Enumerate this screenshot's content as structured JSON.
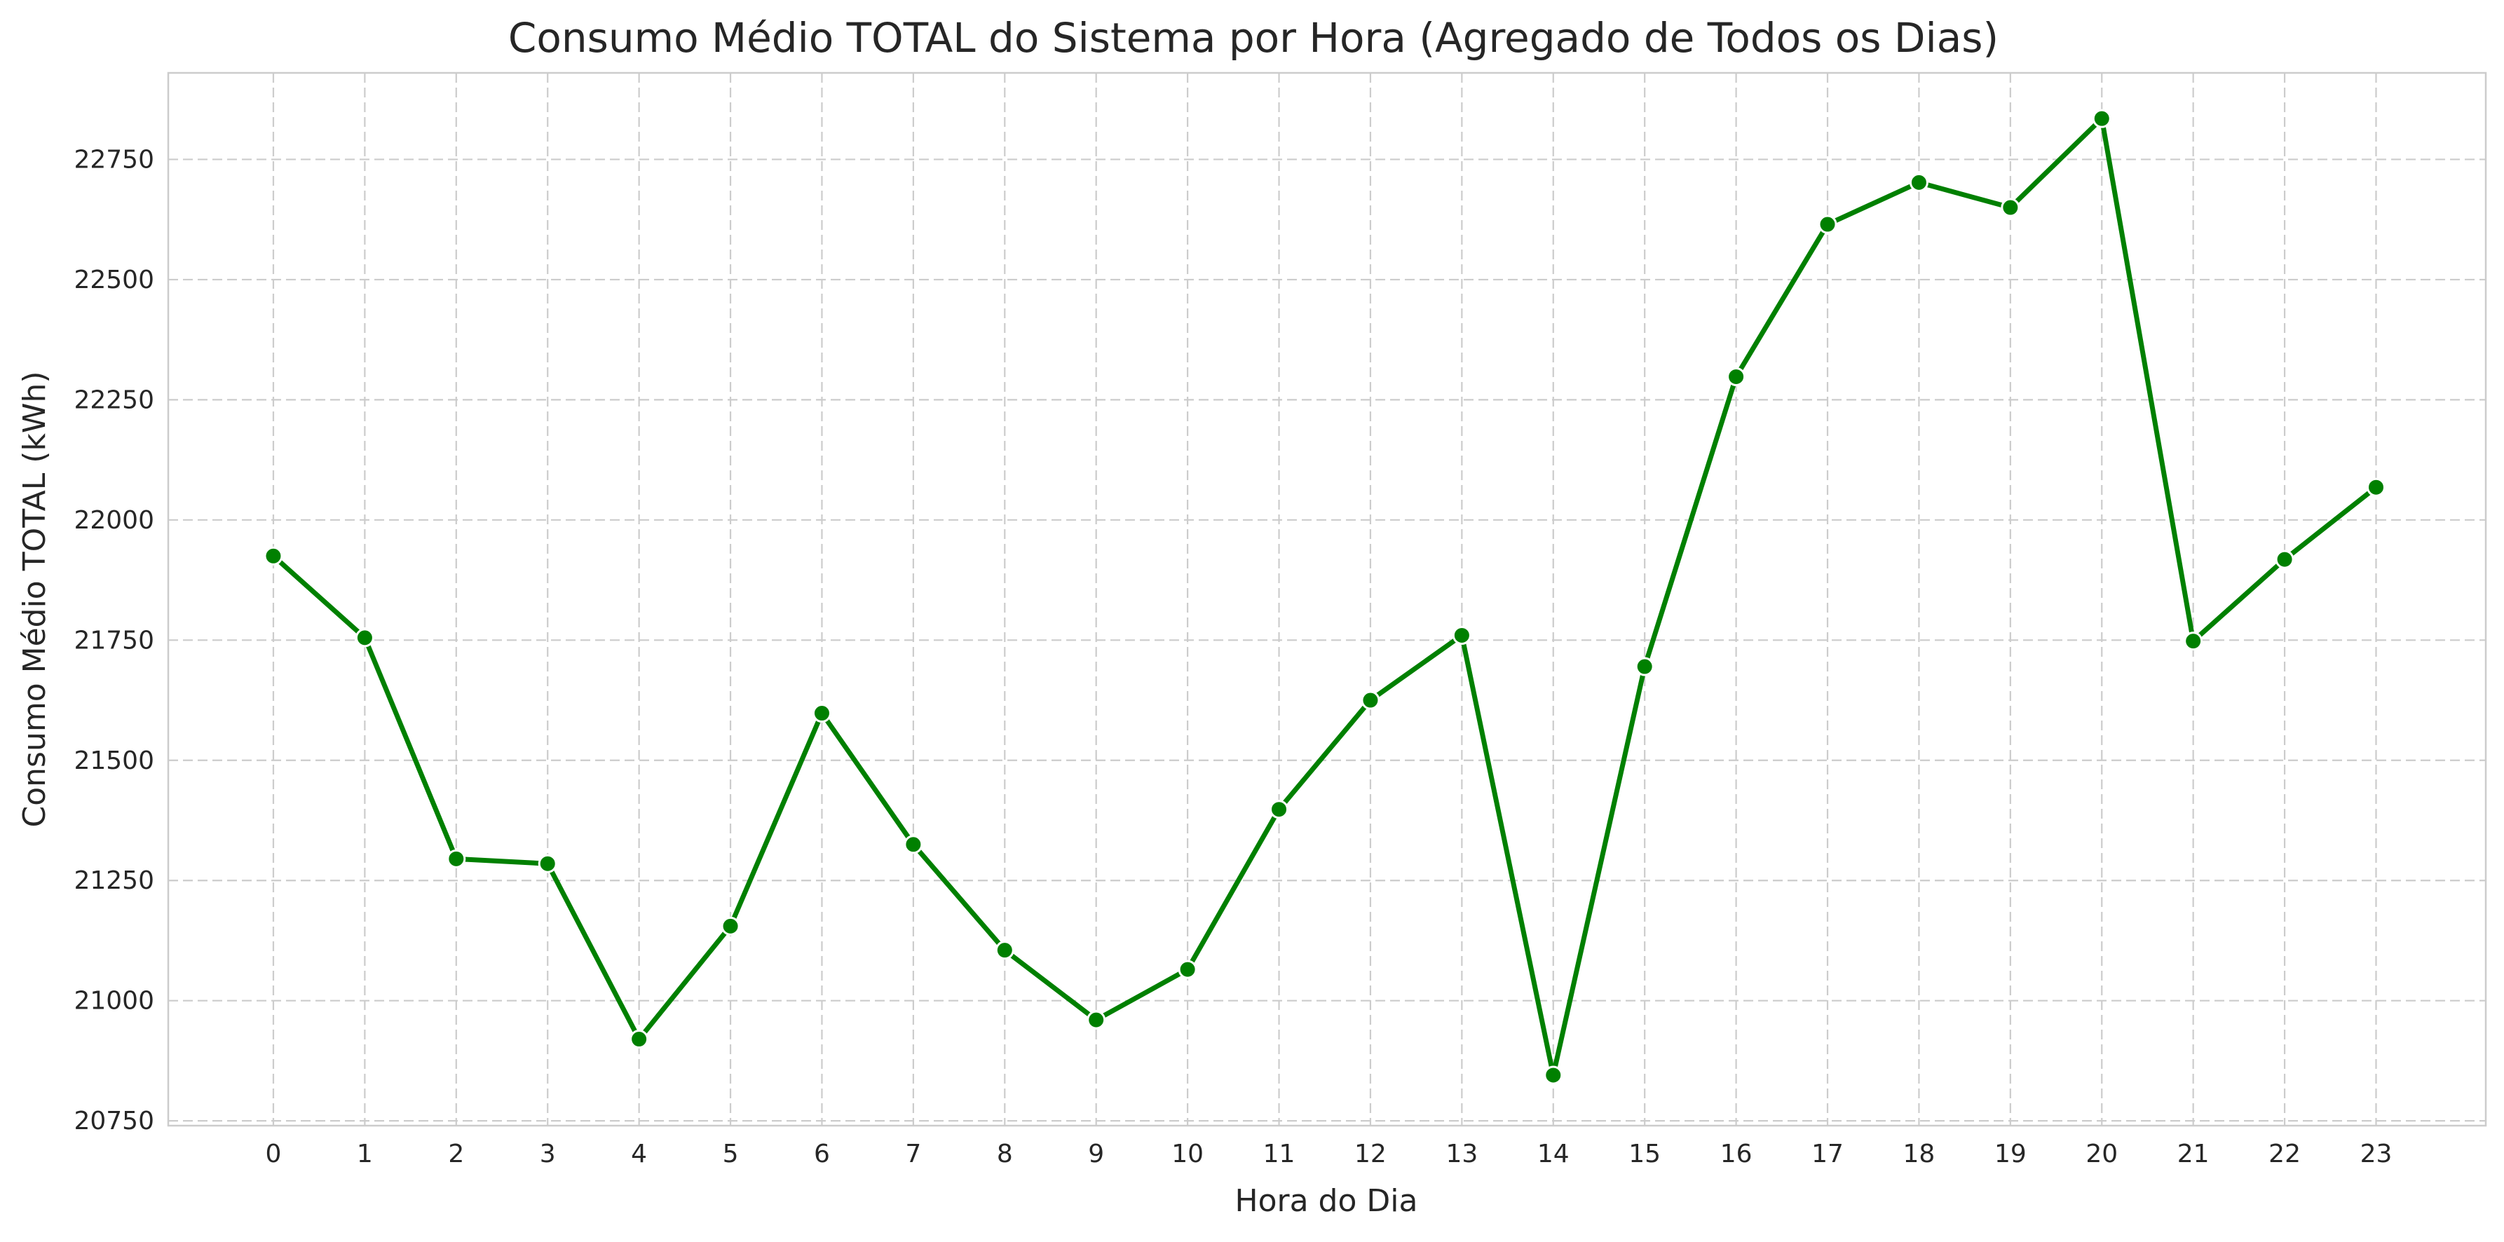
{
  "chart_data": {
    "type": "line",
    "title": "Consumo Médio TOTAL do Sistema por Hora (Agregado de Todos os Dias)",
    "xlabel": "Hora do Dia",
    "ylabel": "Consumo Médio TOTAL (kWh)",
    "x": [
      0,
      1,
      2,
      3,
      4,
      5,
      6,
      7,
      8,
      9,
      10,
      11,
      12,
      13,
      14,
      15,
      16,
      17,
      18,
      19,
      20,
      21,
      22,
      23
    ],
    "x_tick_labels": [
      "0",
      "1",
      "2",
      "3",
      "4",
      "5",
      "6",
      "7",
      "8",
      "9",
      "10",
      "11",
      "12",
      "13",
      "14",
      "15",
      "16",
      "17",
      "18",
      "19",
      "20",
      "21",
      "22",
      "23"
    ],
    "xlim": [
      -1.15,
      24.2
    ],
    "y_ticks": [
      20750,
      21000,
      21250,
      21500,
      21750,
      22000,
      22250,
      22500,
      22750
    ],
    "y_tick_labels": [
      "20750",
      "21000",
      "21250",
      "21500",
      "21750",
      "22000",
      "22250",
      "22500",
      "22750"
    ],
    "ylim": [
      20740,
      22930
    ],
    "grid": true,
    "legend": "none",
    "series": [
      {
        "color": "#008000",
        "marker": "circle",
        "values": [
          21925,
          21755,
          21295,
          21285,
          20920,
          21155,
          21598,
          21325,
          21105,
          20960,
          21065,
          21398,
          21625,
          21760,
          20845,
          21695,
          22298,
          22615,
          22702,
          22650,
          22835,
          21748,
          21918,
          22068
        ]
      }
    ]
  }
}
